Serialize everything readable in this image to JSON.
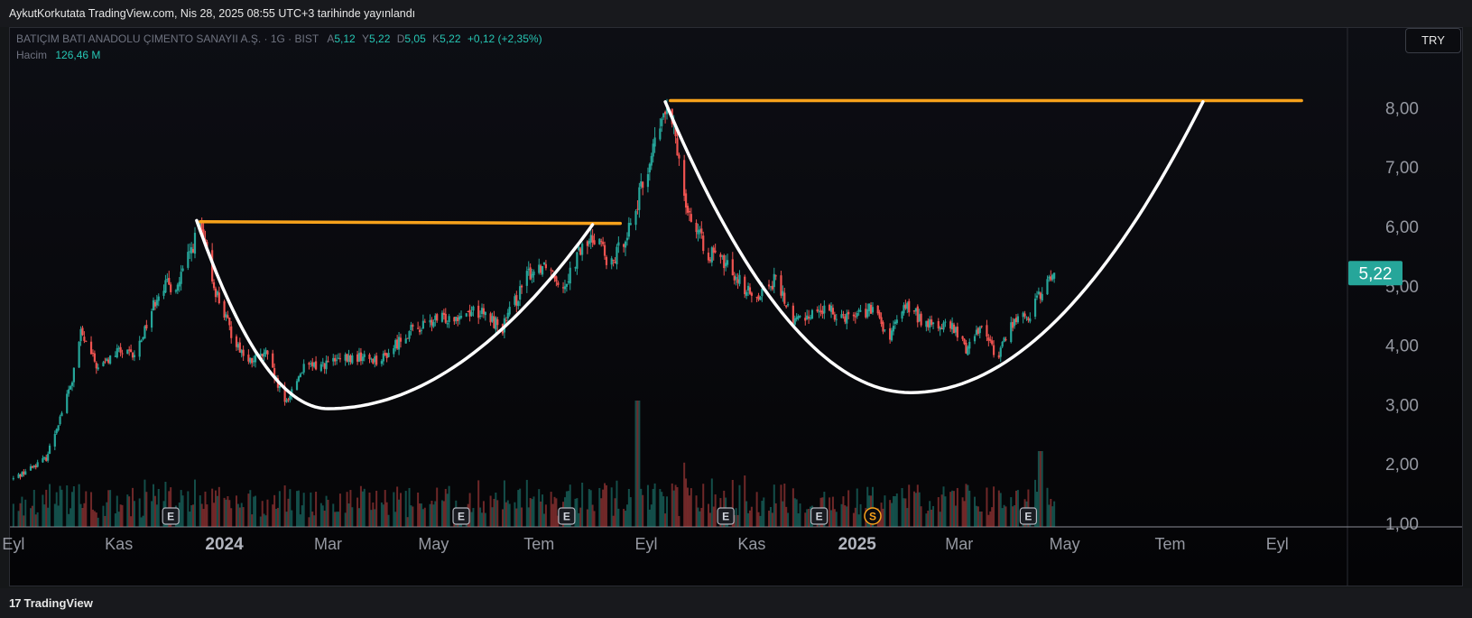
{
  "header": {
    "publisher_text": "AykutKorkutata TradingView.com, Nis 28, 2025 08:55 UTC+3 tarihinde yayınlandı"
  },
  "legend": {
    "symbol": "BATIÇIM BATI ANADOLU ÇIMENTO SANAYII A.Ş. · 1G · BIST",
    "open_label": "A",
    "open": "5,12",
    "high_label": "Y",
    "high": "5,22",
    "low_label": "D",
    "low": "5,05",
    "close_label": "K",
    "close": "5,22",
    "change": "+0,12 (+2,35%)",
    "volume_label": "Hacim",
    "volume": "126,46 M"
  },
  "currency_button": "TRY",
  "last_price": "5,22",
  "brand": {
    "name": "TradingView",
    "logo_text": "17"
  },
  "colors": {
    "up": "#26a69a",
    "down": "#ef5350",
    "resistance_line": "#f7a21b",
    "cup_curve": "#ffffff",
    "price_badge": "#26a69a"
  },
  "chart_data": {
    "type": "candlestick",
    "ylim": [
      1.0,
      8.75
    ],
    "ytick_values": [
      1,
      2,
      3,
      4,
      5,
      6,
      7,
      8
    ],
    "ytick_labels": [
      "1,00",
      "2,00",
      "3,00",
      "4,00",
      "5,00",
      "6,00",
      "7,00",
      "8,00"
    ],
    "xticks": [
      {
        "label": "Eyl",
        "date": "2023-09-01",
        "bold": false
      },
      {
        "label": "Kas",
        "date": "2023-11-01",
        "bold": false
      },
      {
        "label": "2024",
        "date": "2024-01-01",
        "bold": true
      },
      {
        "label": "Mar",
        "date": "2024-03-01",
        "bold": false
      },
      {
        "label": "May",
        "date": "2024-05-01",
        "bold": false
      },
      {
        "label": "Tem",
        "date": "2024-07-01",
        "bold": false
      },
      {
        "label": "Eyl",
        "date": "2024-09-01",
        "bold": false
      },
      {
        "label": "Kas",
        "date": "2024-11-01",
        "bold": false
      },
      {
        "label": "2025",
        "date": "2025-01-01",
        "bold": true
      },
      {
        "label": "Mar",
        "date": "2025-03-01",
        "bold": false
      },
      {
        "label": "May",
        "date": "2025-05-01",
        "bold": false
      },
      {
        "label": "Tem",
        "date": "2025-07-01",
        "bold": false
      },
      {
        "label": "Eyl",
        "date": "2025-09-01",
        "bold": false
      }
    ],
    "price_path": [
      [
        "2023-09-01",
        1.75
      ],
      [
        "2023-09-20",
        2.1
      ],
      [
        "2023-10-05",
        3.4
      ],
      [
        "2023-10-10",
        4.2
      ],
      [
        "2023-10-20",
        3.6
      ],
      [
        "2023-11-01",
        3.9
      ],
      [
        "2023-11-10",
        3.8
      ],
      [
        "2023-11-25",
        5.0
      ],
      [
        "2023-12-05",
        5.0
      ],
      [
        "2023-12-18",
        6.0
      ],
      [
        "2023-12-26",
        5.0
      ],
      [
        "2024-01-05",
        4.2
      ],
      [
        "2024-01-15",
        3.7
      ],
      [
        "2024-01-25",
        3.85
      ],
      [
        "2024-02-05",
        3.0
      ],
      [
        "2024-02-15",
        3.6
      ],
      [
        "2024-03-01",
        3.7
      ],
      [
        "2024-03-20",
        3.8
      ],
      [
        "2024-04-01",
        3.75
      ],
      [
        "2024-04-15",
        4.2
      ],
      [
        "2024-05-01",
        4.4
      ],
      [
        "2024-05-25",
        4.6
      ],
      [
        "2024-06-10",
        4.3
      ],
      [
        "2024-06-25",
        5.2
      ],
      [
        "2024-07-05",
        5.4
      ],
      [
        "2024-07-15",
        5.0
      ],
      [
        "2024-07-25",
        5.6
      ],
      [
        "2024-08-05",
        5.9
      ],
      [
        "2024-08-10",
        5.2
      ],
      [
        "2024-08-25",
        6.2
      ],
      [
        "2024-09-05",
        7.3
      ],
      [
        "2024-09-12",
        7.95
      ],
      [
        "2024-09-18",
        7.5
      ],
      [
        "2024-09-25",
        6.3
      ],
      [
        "2024-10-05",
        5.6
      ],
      [
        "2024-10-20",
        5.3
      ],
      [
        "2024-11-01",
        4.8
      ],
      [
        "2024-11-15",
        5.1
      ],
      [
        "2024-11-25",
        4.4
      ],
      [
        "2024-12-10",
        4.6
      ],
      [
        "2024-12-25",
        4.5
      ],
      [
        "2025-01-10",
        4.6
      ],
      [
        "2025-01-20",
        4.1
      ],
      [
        "2025-01-28",
        4.7
      ],
      [
        "2025-02-10",
        4.35
      ],
      [
        "2025-02-25",
        4.3
      ],
      [
        "2025-03-05",
        3.95
      ],
      [
        "2025-03-15",
        4.4
      ],
      [
        "2025-03-22",
        3.75
      ],
      [
        "2025-04-01",
        4.4
      ],
      [
        "2025-04-10",
        4.5
      ],
      [
        "2025-04-20",
        5.0
      ],
      [
        "2025-04-25",
        5.22
      ]
    ],
    "volume_spikes": [
      [
        "2024-08-27",
        1.0
      ],
      [
        "2025-04-17",
        0.6
      ]
    ],
    "earnings_markers": [
      {
        "label": "E",
        "date": "2023-12-01"
      },
      {
        "label": "E",
        "date": "2024-05-17"
      },
      {
        "label": "E",
        "date": "2024-07-17"
      },
      {
        "label": "E",
        "date": "2024-10-17"
      },
      {
        "label": "E",
        "date": "2024-12-10"
      },
      {
        "label": "S",
        "date": "2025-01-10"
      },
      {
        "label": "E",
        "date": "2025-04-10"
      }
    ],
    "resistance_lines": [
      {
        "from": [
          "2023-12-18",
          6.08
        ],
        "to": [
          "2024-08-17",
          6.05
        ]
      },
      {
        "from": [
          "2024-09-15",
          8.12
        ],
        "to": [
          "2025-09-15",
          8.12
        ]
      }
    ],
    "cup_curves": [
      {
        "start": [
          "2023-12-16",
          6.1
        ],
        "bottom": [
          "2024-03-01",
          2.93
        ],
        "end": [
          "2024-08-01",
          6.03
        ]
      },
      {
        "start": [
          "2024-09-12",
          8.1
        ],
        "bottom": [
          "2025-02-01",
          3.2
        ],
        "end": [
          "2025-07-20",
          8.1
        ]
      }
    ]
  }
}
